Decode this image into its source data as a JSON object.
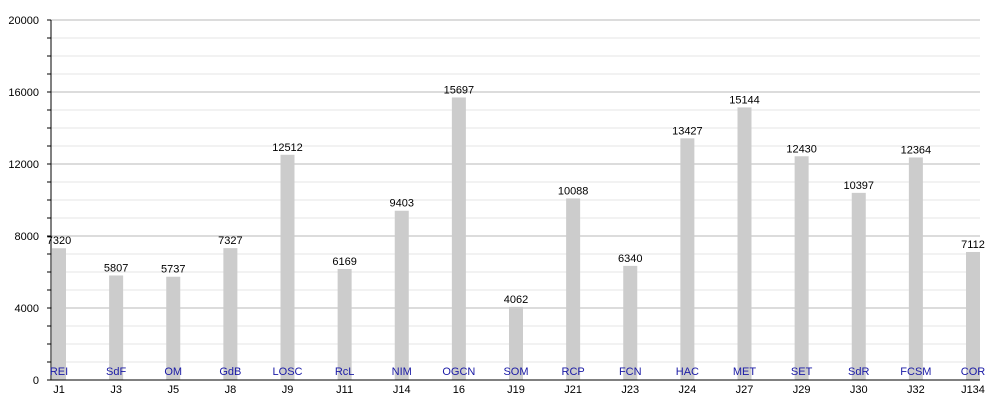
{
  "chart_data": {
    "type": "bar",
    "title": "",
    "xlabel": "",
    "ylabel": "",
    "ylim": [
      0,
      20000
    ],
    "yticks": [
      0,
      4000,
      8000,
      12000,
      16000,
      20000
    ],
    "grid": true,
    "categories": [
      "J1",
      "J3",
      "J5",
      "J8",
      "J9",
      "J11",
      "J14",
      "16",
      "J19",
      "J21",
      "J23",
      "J24",
      "J27",
      "J29",
      "J30",
      "J32",
      "J134"
    ],
    "teams": [
      "REI",
      "SdF",
      "OM",
      "GdB",
      "LOSC",
      "RcL",
      "NIM",
      "OGCN",
      "SOM",
      "RCP",
      "FCN",
      "HAC",
      "MET",
      "SET",
      "SdR",
      "FCSM",
      "COR"
    ],
    "values": [
      7320,
      5807,
      5737,
      7327,
      12512,
      6169,
      9403,
      15697,
      4062,
      10088,
      6340,
      13427,
      15144,
      12430,
      10397,
      12364,
      7112
    ],
    "bar_color": "#cccccc",
    "team_label_color": "#1a1aa6"
  }
}
